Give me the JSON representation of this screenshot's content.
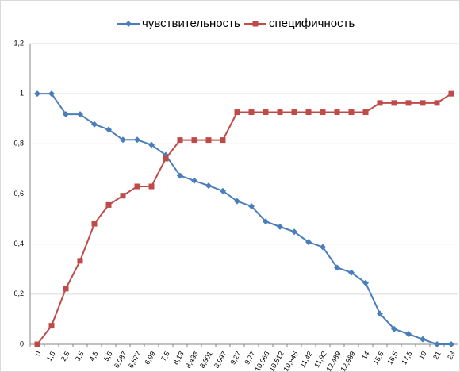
{
  "chart_data": {
    "type": "line",
    "categories": [
      "0",
      "1,5",
      "2,5",
      "3,5",
      "4,5",
      "5,5",
      "6,087",
      "6,577",
      "6,99",
      "7,5",
      "8,13",
      "8,433",
      "8,801",
      "8,997",
      "9,27",
      "9,77",
      "10,066",
      "10,512",
      "10,946",
      "11,42",
      "11,92",
      "12,489",
      "12,989",
      "14",
      "15,5",
      "16,5",
      "17,5",
      "19",
      "21",
      "23"
    ],
    "series": [
      {
        "name": "чувствительность",
        "color": "#4a7ebb",
        "marker": "diamond",
        "values": [
          1,
          1,
          0.918,
          0.918,
          0.878,
          0.857,
          0.816,
          0.816,
          0.796,
          0.755,
          0.673,
          0.653,
          0.633,
          0.612,
          0.571,
          0.551,
          0.49,
          0.469,
          0.449,
          0.408,
          0.388,
          0.306,
          0.286,
          0.245,
          0.122,
          0.061,
          0.041,
          0.02,
          0,
          0
        ]
      },
      {
        "name": "специфичность",
        "color": "#be4b48",
        "marker": "square",
        "values": [
          0,
          0.074,
          0.222,
          0.333,
          0.481,
          0.556,
          0.593,
          0.63,
          0.63,
          0.741,
          0.815,
          0.815,
          0.815,
          0.815,
          0.926,
          0.926,
          0.926,
          0.926,
          0.926,
          0.926,
          0.926,
          0.926,
          0.926,
          0.926,
          0.963,
          0.963,
          0.963,
          0.963,
          0.963,
          1
        ]
      }
    ],
    "ylim": [
      0,
      1.2
    ],
    "yticks": [
      0,
      {
        "value": 0.2,
        "label": "0,2"
      },
      {
        "value": 0.4,
        "label": "0,4"
      },
      {
        "value": 0.6,
        "label": "0,6"
      },
      {
        "value": 0.8,
        "label": "0,8"
      },
      1,
      {
        "value": 1.2,
        "label": "1,2"
      }
    ],
    "grid": true,
    "legend": "top"
  }
}
